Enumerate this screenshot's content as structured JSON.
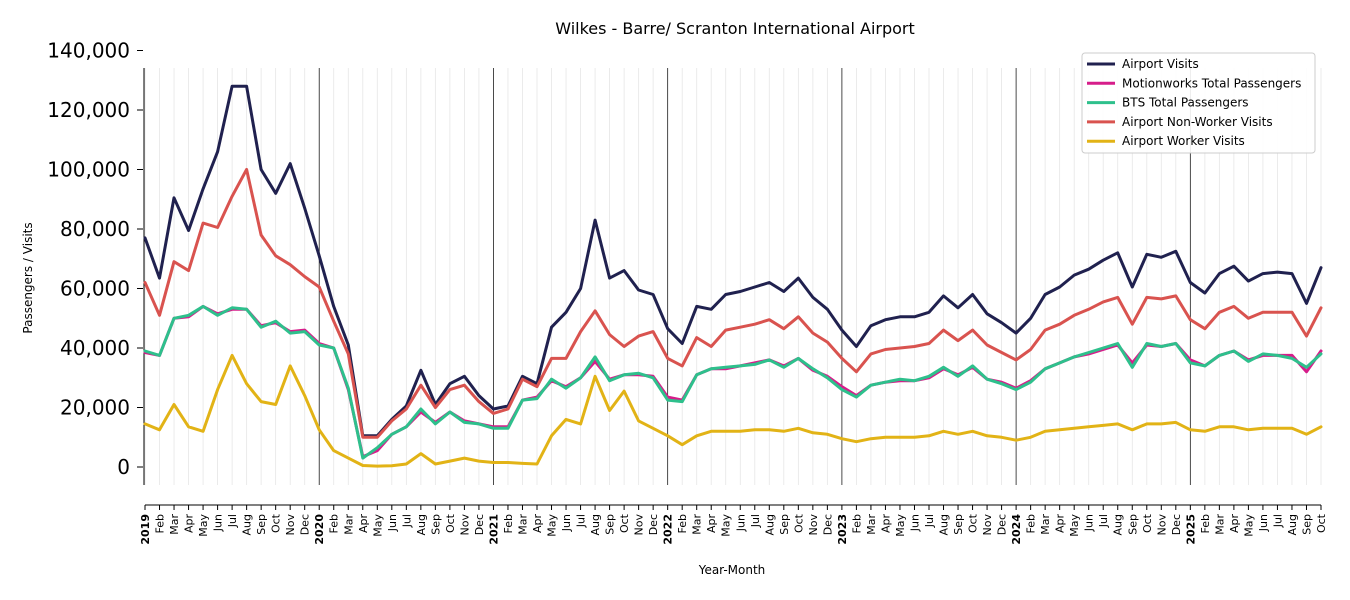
{
  "chart_data": {
    "type": "line",
    "title": "Wilkes - Barre/ Scranton International Airport",
    "xlabel": "Year-Month",
    "ylabel": "Passengers / Visits",
    "ylim": [
      -6000,
      140000
    ],
    "yticks": [
      0,
      20000,
      40000,
      60000,
      80000,
      100000,
      120000,
      140000
    ],
    "ytick_labels": [
      "0",
      "20,000",
      "40,000",
      "60,000",
      "80,000",
      "100,000",
      "120,000",
      "140,000"
    ],
    "grid": "vertical monthly",
    "legend_position": "top-right",
    "year_separators": [
      "2020",
      "2021",
      "2022",
      "2023",
      "2024",
      "2025"
    ],
    "x": [
      "2019",
      "Feb",
      "Mar",
      "Apr",
      "May",
      "Jun",
      "Jul",
      "Aug",
      "Sep",
      "Oct",
      "Nov",
      "Dec",
      "2020",
      "Feb",
      "Mar",
      "Apr",
      "May",
      "Jun",
      "Jul",
      "Aug",
      "Sep",
      "Oct",
      "Nov",
      "Dec",
      "2021",
      "Feb",
      "Mar",
      "Apr",
      "May",
      "Jun",
      "Jul",
      "Aug",
      "Sep",
      "Oct",
      "Nov",
      "Dec",
      "2022",
      "Feb",
      "Mar",
      "Apr",
      "May",
      "Jun",
      "Jul",
      "Aug",
      "Sep",
      "Oct",
      "Nov",
      "Dec",
      "2023",
      "Feb",
      "Mar",
      "Apr",
      "May",
      "Jun",
      "Jul",
      "Aug",
      "Sep",
      "Oct",
      "Nov",
      "Dec",
      "2024",
      "Feb",
      "Mar",
      "Apr",
      "May",
      "Jun",
      "Jul",
      "Aug",
      "Sep",
      "Oct",
      "Nov",
      "Dec",
      "2025",
      "Feb",
      "Mar",
      "Apr",
      "May",
      "Jun",
      "Jul",
      "Aug",
      "Sep",
      "Oct"
    ],
    "series": [
      {
        "name": "Airport Visits",
        "color": "#20214f",
        "values": [
          77000,
          63500,
          90500,
          79500,
          93500,
          106000,
          128000,
          128000,
          100000,
          92000,
          102000,
          87000,
          71000,
          54000,
          41000,
          10500,
          10500,
          16000,
          20500,
          32500,
          21000,
          28000,
          30500,
          24000,
          19500,
          20500,
          30500,
          28000,
          47000,
          52000,
          60000,
          83000,
          63500,
          66000,
          59500,
          58000,
          46500,
          41500,
          54000,
          53000,
          58000,
          59000,
          60500,
          62000,
          59000,
          63500,
          57000,
          53000,
          46000,
          40500,
          47500,
          49500,
          50500,
          50500,
          52000,
          57500,
          53500,
          58000,
          51500,
          48500,
          45000,
          50000,
          58000,
          60500,
          64500,
          66500,
          69500,
          72000,
          60500,
          71500,
          70500,
          72500,
          62000,
          58500,
          65000,
          67500,
          62500,
          65000,
          65500,
          65000,
          55000,
          67000
        ]
      },
      {
        "name": "Motionworks Total Passengers",
        "color": "#d61d8a",
        "values": [
          38500,
          37500,
          50000,
          50500,
          54000,
          51500,
          53000,
          53000,
          47500,
          48500,
          45500,
          46000,
          41500,
          40000,
          26000,
          3500,
          5500,
          11000,
          13500,
          18500,
          15000,
          18500,
          15500,
          14500,
          13500,
          13500,
          22500,
          23500,
          29000,
          27000,
          30000,
          35500,
          29500,
          31000,
          31000,
          30500,
          23500,
          22500,
          31000,
          33000,
          33000,
          34000,
          35000,
          36000,
          34000,
          36500,
          32500,
          30500,
          27000,
          24000,
          27500,
          28500,
          29000,
          29000,
          30000,
          33000,
          31000,
          33500,
          29500,
          28500,
          26500,
          29000,
          33000,
          35000,
          37000,
          38000,
          39500,
          41000,
          35000,
          41000,
          40500,
          41500,
          36000,
          34000,
          37500,
          39000,
          36000,
          37500,
          37500,
          37500,
          32000,
          39000
        ]
      },
      {
        "name": "BTS Total Passengers",
        "color": "#2ec08c",
        "values": [
          39000,
          37500,
          50000,
          51000,
          54000,
          51000,
          53500,
          53000,
          47000,
          49000,
          45000,
          45500,
          41000,
          40000,
          26500,
          3000,
          6500,
          11000,
          13500,
          19500,
          14500,
          18500,
          15000,
          14500,
          13000,
          13000,
          22500,
          23000,
          29500,
          26500,
          30000,
          37000,
          29000,
          31000,
          31500,
          30000,
          22500,
          22000,
          31000,
          33000,
          33500,
          34000,
          34500,
          36000,
          33500,
          36500,
          33000,
          30000,
          26000,
          23500,
          27500,
          28500,
          29500,
          29000,
          30500,
          33500,
          30500,
          34000,
          29500,
          28000,
          26000,
          28500,
          33000,
          35000,
          37000,
          38500,
          40000,
          41500,
          33500,
          41500,
          40500,
          41500,
          35000,
          34000,
          37500,
          39000,
          35500,
          38000,
          37500,
          36500,
          33500,
          38000
        ]
      },
      {
        "name": "Airport Non-Worker Visits",
        "color": "#d9534f",
        "values": [
          62000,
          51000,
          69000,
          66000,
          82000,
          80500,
          91000,
          100000,
          78000,
          71000,
          68000,
          64000,
          60500,
          49000,
          38000,
          10000,
          10000,
          15500,
          19500,
          27500,
          20000,
          26000,
          27500,
          22000,
          18000,
          19500,
          29500,
          27000,
          36500,
          36500,
          45500,
          52500,
          44500,
          40500,
          44000,
          45500,
          36500,
          34000,
          43500,
          40500,
          46000,
          47000,
          48000,
          49500,
          46500,
          50500,
          45000,
          42000,
          36500,
          32000,
          38000,
          39500,
          40000,
          40500,
          41500,
          46000,
          42500,
          46000,
          41000,
          38500,
          36000,
          39500,
          46000,
          48000,
          51000,
          53000,
          55500,
          57000,
          48000,
          57000,
          56500,
          57500,
          49500,
          46500,
          52000,
          54000,
          50000,
          52000,
          52000,
          52000,
          44000,
          53500
        ]
      },
      {
        "name": "Airport Worker Visits",
        "color": "#e2b316",
        "values": [
          14500,
          12500,
          21000,
          13500,
          12000,
          26000,
          37500,
          28000,
          22000,
          21000,
          34000,
          24000,
          12500,
          5500,
          3000,
          500,
          300,
          400,
          1000,
          4500,
          1000,
          2000,
          3000,
          2000,
          1500,
          1500,
          1200,
          1000,
          10500,
          16000,
          14500,
          30500,
          19000,
          25500,
          15500,
          13000,
          10500,
          7500,
          10500,
          12000,
          12000,
          12000,
          12500,
          12500,
          12000,
          13000,
          11500,
          11000,
          9500,
          8500,
          9500,
          10000,
          10000,
          10000,
          10500,
          12000,
          11000,
          12000,
          10500,
          10000,
          9000,
          10000,
          12000,
          12500,
          13000,
          13500,
          14000,
          14500,
          12500,
          14500,
          14500,
          15000,
          12500,
          12000,
          13500,
          13500,
          12500,
          13000,
          13000,
          13000,
          11000,
          13500
        ]
      }
    ]
  }
}
